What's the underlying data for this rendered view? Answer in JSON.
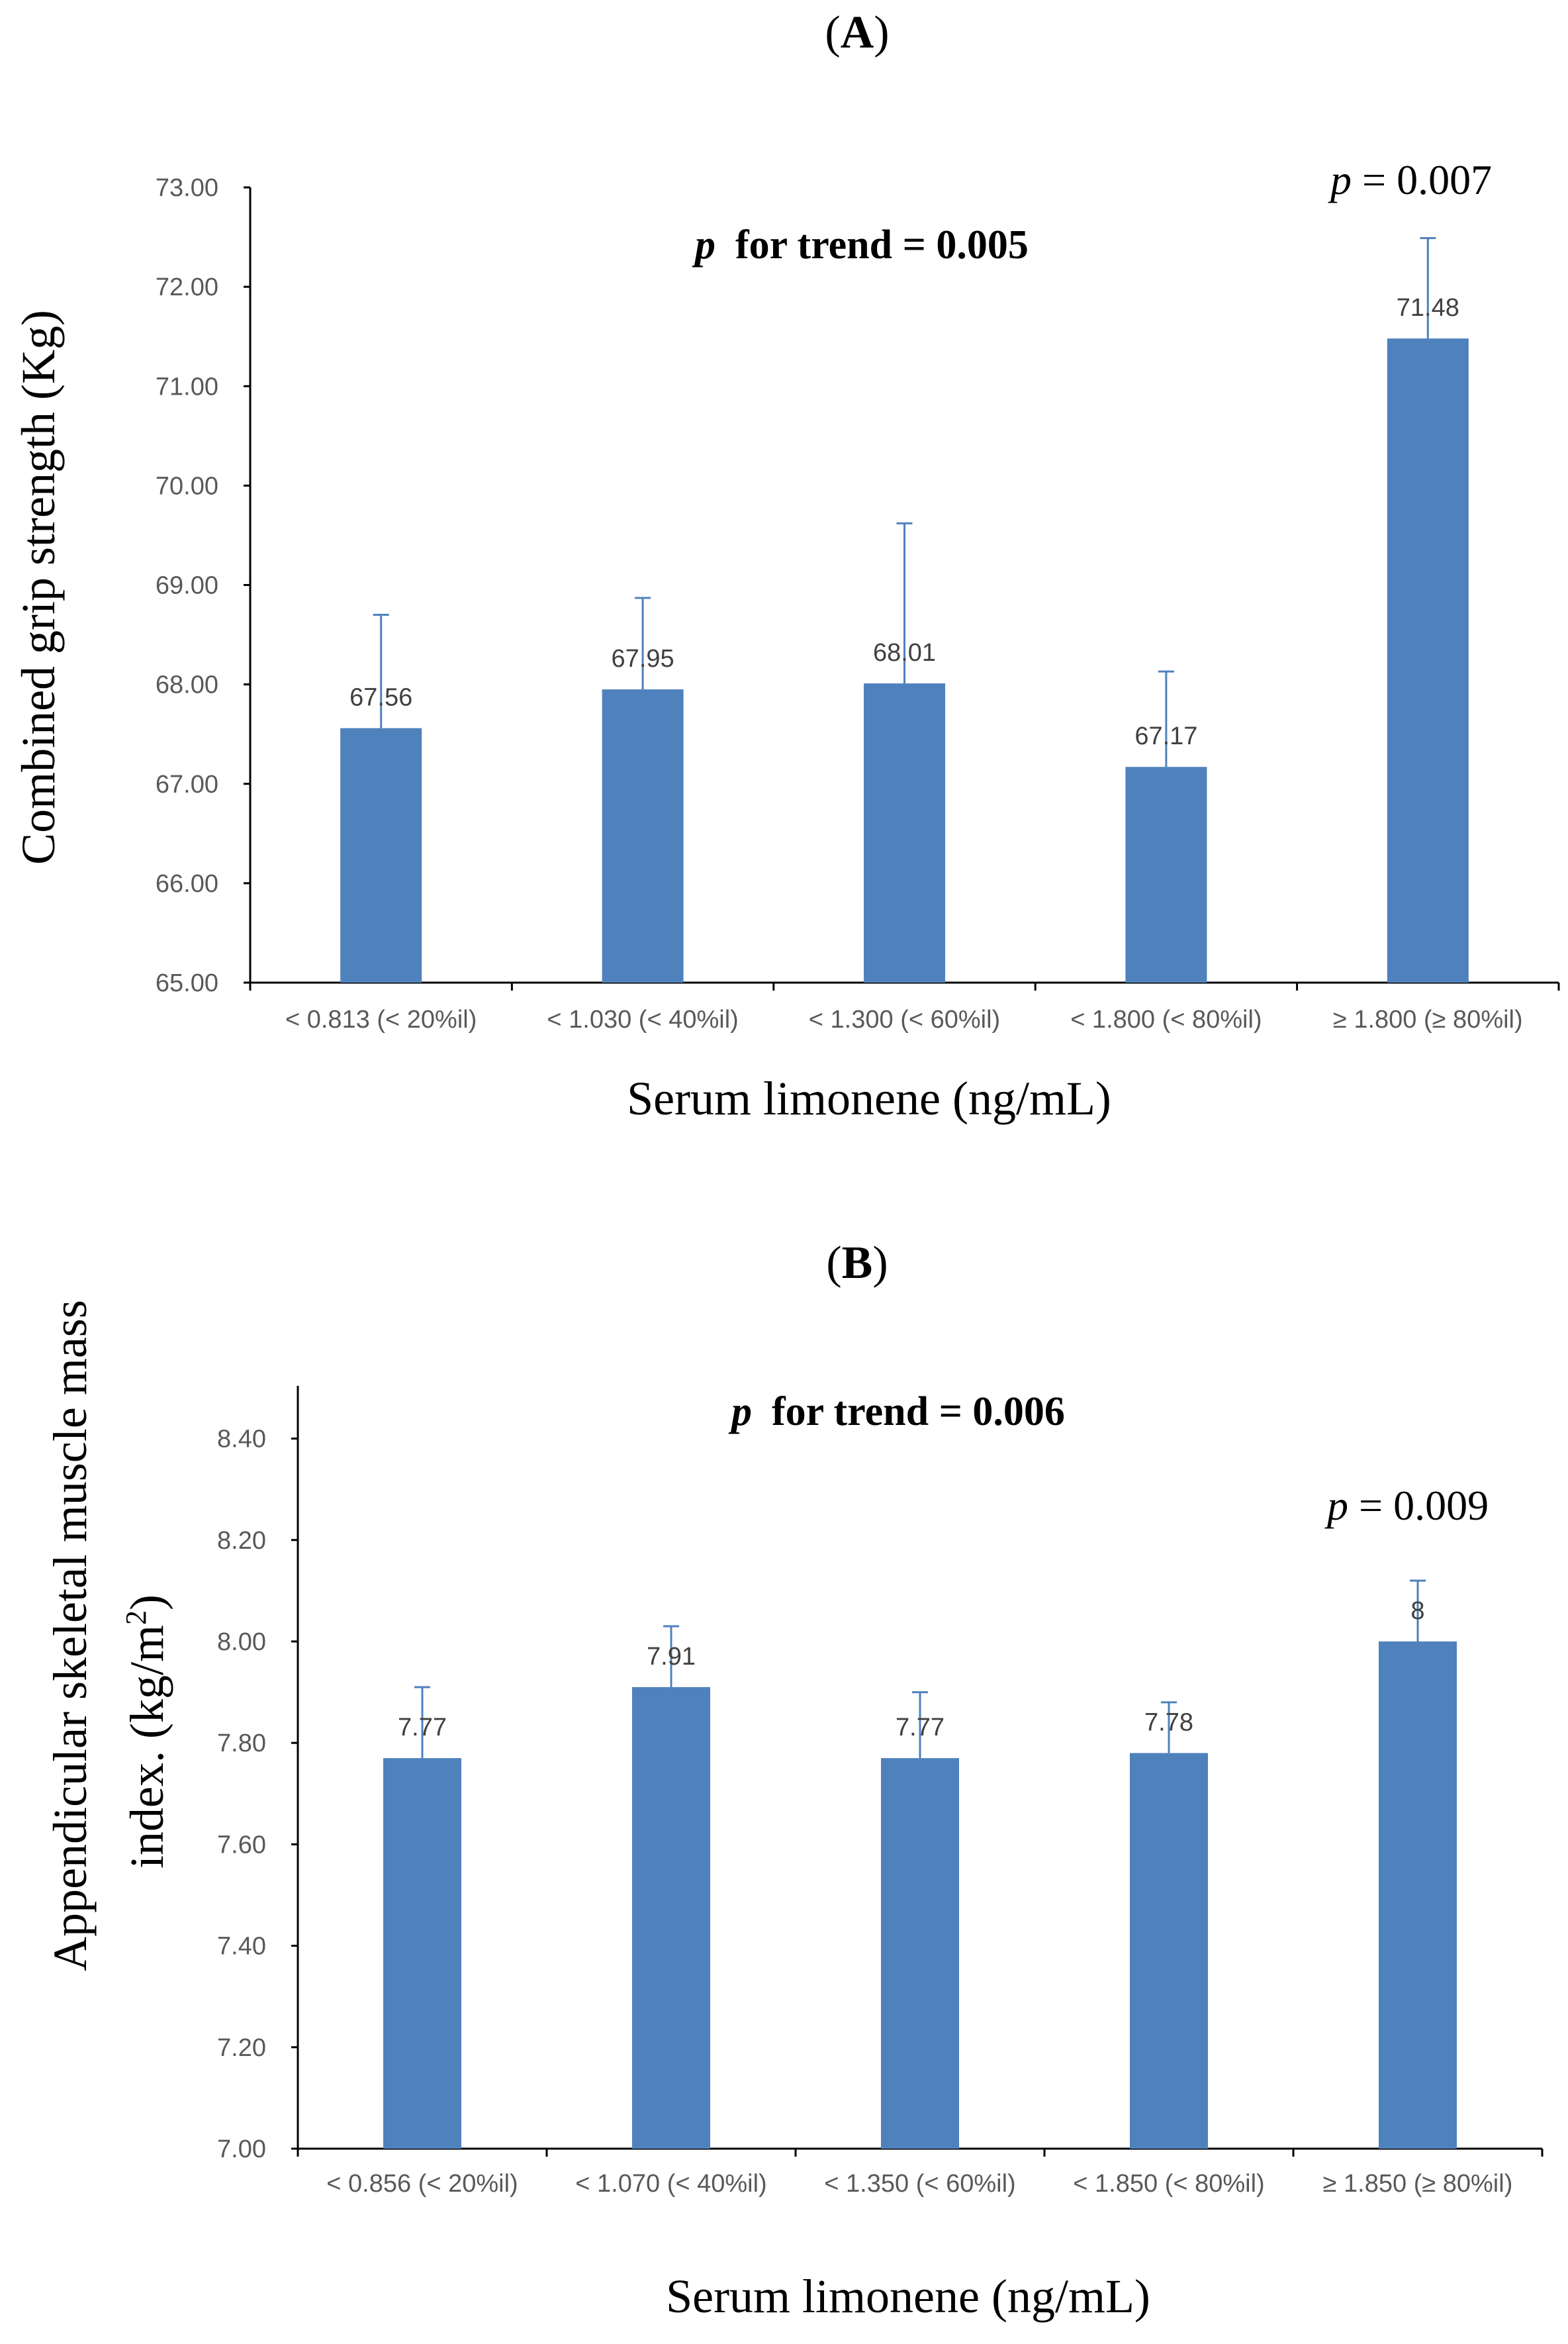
{
  "figure": {
    "panels": [
      {
        "label": "A",
        "ytitle": "Combined grip strength (Kg)",
        "xtitle": "Serum limonene (ng/mL)",
        "trend": {
          "p": "p",
          "text": "for trend = 0.005"
        },
        "sig": {
          "p": "p",
          "text": "= 0.007"
        }
      },
      {
        "label": "B",
        "ytitle_line1": "Appendicular skeletal muscle mass",
        "ytitle_line2": "index. (kg/m",
        "ytitle_sup": "2",
        "ytitle_close": ")",
        "xtitle": "Serum limonene (ng/mL)",
        "trend": {
          "p": "p",
          "text": "for trend = 0.006"
        },
        "sig": {
          "p": "p",
          "text": "= 0.009"
        }
      }
    ]
  },
  "chart_data": [
    {
      "type": "bar",
      "title": "(A)",
      "xlabel": "Serum limonene (ng/mL)",
      "ylabel": "Combined grip strength (Kg)",
      "ylim": [
        65,
        73
      ],
      "yticks": [
        65,
        66,
        67,
        68,
        69,
        70,
        71,
        72,
        73
      ],
      "ytick_labels": [
        "65.00",
        "66.00",
        "67.00",
        "68.00",
        "69.00",
        "70.00",
        "71.00",
        "72.00",
        "73.00"
      ],
      "categories": [
        "< 0.813 (< 20%il)",
        "< 1.030 (< 40%il)",
        "< 1.300 (< 60%il)",
        "< 1.800 (< 80%il)",
        "≥ 1.800 (≥ 80%il)"
      ],
      "values": [
        67.56,
        67.95,
        68.01,
        67.17,
        71.48
      ],
      "value_labels": [
        "67.56",
        "67.95",
        "68.01",
        "67.17",
        "71.48"
      ],
      "error_upper": [
        68.7,
        68.87,
        69.62,
        68.13,
        72.49
      ],
      "color": "#4f81bd",
      "annotations": [
        "p for trend = 0.005",
        "p = 0.007"
      ]
    },
    {
      "type": "bar",
      "title": "(B)",
      "xlabel": "Serum limonene (ng/mL)",
      "ylabel": "Appendicular skeletal muscle mass index. (kg/m2)",
      "ylim": [
        7.0,
        8.5
      ],
      "yticks": [
        7.0,
        7.2,
        7.4,
        7.6,
        7.8,
        8.0,
        8.2,
        8.4
      ],
      "ytick_labels": [
        "7.00",
        "7.20",
        "7.40",
        "7.60",
        "7.80",
        "8.00",
        "8.20",
        "8.40"
      ],
      "categories": [
        "< 0.856 (< 20%il)",
        "< 1.070 (< 40%il)",
        "< 1.350 (< 60%il)",
        "< 1.850 (< 80%il)",
        "≥ 1.850 (≥ 80%il)"
      ],
      "values": [
        7.77,
        7.91,
        7.77,
        7.78,
        8.0
      ],
      "value_labels": [
        "7.77",
        "7.91",
        "7.77",
        "7.78",
        "8"
      ],
      "error_upper": [
        7.91,
        8.03,
        7.9,
        7.88,
        8.12
      ],
      "color": "#4f81bd",
      "annotations": [
        "p for trend = 0.006",
        "p = 0.009"
      ]
    }
  ]
}
